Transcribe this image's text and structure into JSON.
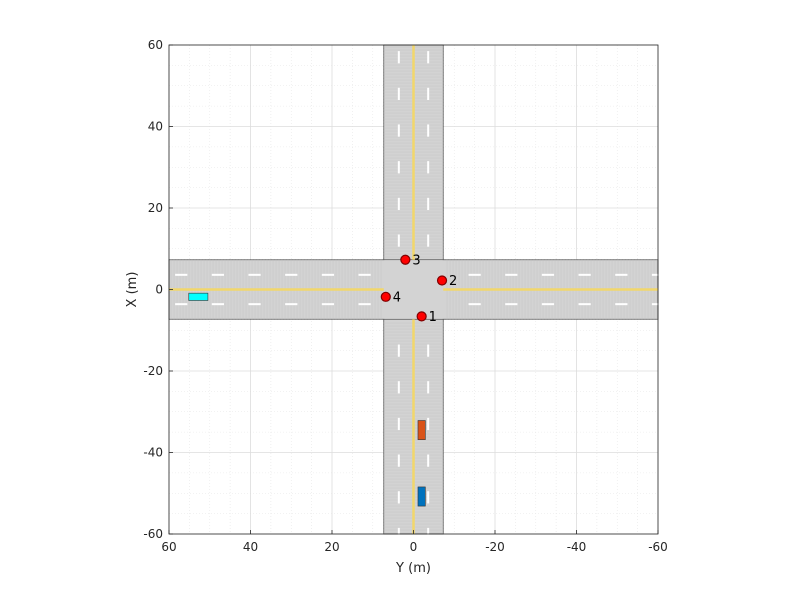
{
  "chart_data": {
    "type": "scatter",
    "title": "",
    "xlabel": "Y (m)",
    "ylabel": "X (m)",
    "xlim": [
      60,
      -60
    ],
    "ylim": [
      -60,
      60
    ],
    "x_reversed": true,
    "x_ticks": [
      60,
      40,
      20,
      0,
      -20,
      -40,
      -60
    ],
    "y_ticks": [
      -60,
      -40,
      -20,
      0,
      20,
      40,
      60
    ],
    "x_tick_labels": [
      "60",
      "40",
      "20",
      "0",
      "-20",
      "-40",
      "-60"
    ],
    "y_tick_labels": [
      "-60",
      "-40",
      "-20",
      "0",
      "20",
      "40",
      "60"
    ],
    "grid": "on",
    "minor_grid": "on",
    "legend": "none",
    "roads": [
      {
        "name": "north-south-road",
        "y_from": -60,
        "y_to": 60,
        "x_from": -7.3,
        "x_to": 7.3
      },
      {
        "name": "east-west-road",
        "y_from": -7.3,
        "y_to": 7.3,
        "x_from": -60,
        "x_to": 60
      }
    ],
    "waypoints": [
      {
        "label": "1",
        "y": -2,
        "x": -6.6
      },
      {
        "label": "2",
        "y": -7,
        "x": 2.2
      },
      {
        "label": "3",
        "y": 2,
        "x": 7.3
      },
      {
        "label": "4",
        "y": 6.8,
        "x": -1.8
      }
    ],
    "vehicles": [
      {
        "name": "orange-vehicle",
        "color": "#D95319",
        "y_center": -2,
        "x_center": -34.5,
        "length": 4.7,
        "width": 1.8,
        "orientation": "north-south"
      },
      {
        "name": "blue-vehicle",
        "color": "#0072BD",
        "y_center": -2,
        "x_center": -50.8,
        "length": 4.7,
        "width": 1.8,
        "orientation": "north-south"
      },
      {
        "name": "cyan-vehicle",
        "color": "#00FFFF",
        "y_center": 52.8,
        "x_center": -1.8,
        "length": 4.7,
        "width": 1.8,
        "orientation": "east-west"
      }
    ],
    "colors": {
      "road": "#d3d3d3",
      "lane_center": "#f2d76b",
      "lane_marking": "#ffffff",
      "waypoint_fill": "#ff0000",
      "waypoint_edge": "#800000"
    }
  }
}
